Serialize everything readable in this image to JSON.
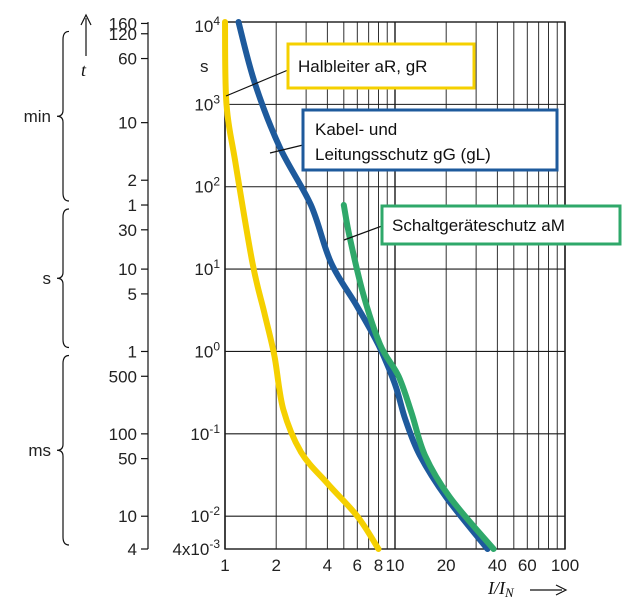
{
  "chart_data": {
    "type": "line",
    "x_scale": "log",
    "y_scale": "log",
    "xlim": [
      1,
      100
    ],
    "ylim": [
      0.004,
      10000
    ],
    "grid": true,
    "x_tick_labels": [
      "1",
      "2",
      "4",
      "6",
      "8",
      "10",
      "20",
      "40",
      "60",
      "100"
    ],
    "x_tick_values": [
      1,
      2,
      4,
      6,
      8,
      10,
      20,
      40,
      60,
      100
    ],
    "y_tick_labels": [
      "10^4",
      "10^3",
      "10^2",
      "10^1",
      "10^0",
      "10^-1",
      "10^-2",
      "4x10^-3"
    ],
    "y_tick_values": [
      10000,
      1000,
      100,
      10,
      1,
      0.1,
      0.01,
      0.004
    ],
    "y_unit": "s",
    "xlabel": "I/IN",
    "ylabel": "t",
    "time_scale": {
      "groups": [
        {
          "unit": "min",
          "from": 60,
          "to": 9600
        },
        {
          "unit": "s",
          "from": 1,
          "to": 60
        },
        {
          "unit": "ms",
          "from": 0.004,
          "to": 1
        }
      ],
      "ticks": [
        {
          "label": "160",
          "seconds": 9600
        },
        {
          "label": "120",
          "seconds": 7200
        },
        {
          "label": "60",
          "seconds": 3600
        },
        {
          "label": "10",
          "seconds": 600
        },
        {
          "label": "2",
          "seconds": 120
        },
        {
          "label": "1",
          "seconds": 60
        },
        {
          "label": "30",
          "seconds": 30
        },
        {
          "label": "10",
          "seconds": 10
        },
        {
          "label": "5",
          "seconds": 5
        },
        {
          "label": "1",
          "seconds": 1
        },
        {
          "label": "500",
          "seconds": 0.5
        },
        {
          "label": "100",
          "seconds": 0.1
        },
        {
          "label": "50",
          "seconds": 0.05
        },
        {
          "label": "10",
          "seconds": 0.01
        },
        {
          "label": "4",
          "seconds": 0.004
        }
      ]
    },
    "series": [
      {
        "name": "Halbleiter aR, gR",
        "color": "#F5D000",
        "points": [
          [
            1.0,
            10000
          ],
          [
            1.02,
            1000
          ],
          [
            1.15,
            200
          ],
          [
            1.45,
            12
          ],
          [
            1.7,
            3
          ],
          [
            1.95,
            0.9
          ],
          [
            2.2,
            0.2
          ],
          [
            2.8,
            0.06
          ],
          [
            4,
            0.025
          ],
          [
            6,
            0.01
          ],
          [
            8,
            0.004
          ]
        ]
      },
      {
        "name": "Kabel- und Leitungsschutz gG (gL)",
        "color": "#1E5A9C",
        "points": [
          [
            1.2,
            10000
          ],
          [
            1.5,
            1800
          ],
          [
            2.1,
            300
          ],
          [
            3.2,
            60
          ],
          [
            4.2,
            12
          ],
          [
            6,
            3.5
          ],
          [
            8,
            1.2
          ],
          [
            10,
            0.4
          ],
          [
            11.5,
            0.15
          ],
          [
            14,
            0.055
          ],
          [
            20,
            0.017
          ],
          [
            35,
            0.004
          ]
        ]
      },
      {
        "name": "Schaltgeräteschutz aM",
        "color": "#2FA86A",
        "points": [
          [
            5,
            60
          ],
          [
            5.4,
            25
          ],
          [
            6.5,
            5
          ],
          [
            8.2,
            1.2
          ],
          [
            10.5,
            0.5
          ],
          [
            12.5,
            0.18
          ],
          [
            15,
            0.055
          ],
          [
            21,
            0.017
          ],
          [
            38,
            0.004
          ]
        ]
      }
    ],
    "annotations": [
      {
        "text": "Halbleiter aR, gR",
        "series": 0
      },
      {
        "text": "Kabel- und",
        "series": 1
      },
      {
        "text": "Leitungsschutz gG (gL)",
        "series": 1
      },
      {
        "text": "Schaltgeräteschutz aM",
        "series": 2
      }
    ]
  }
}
